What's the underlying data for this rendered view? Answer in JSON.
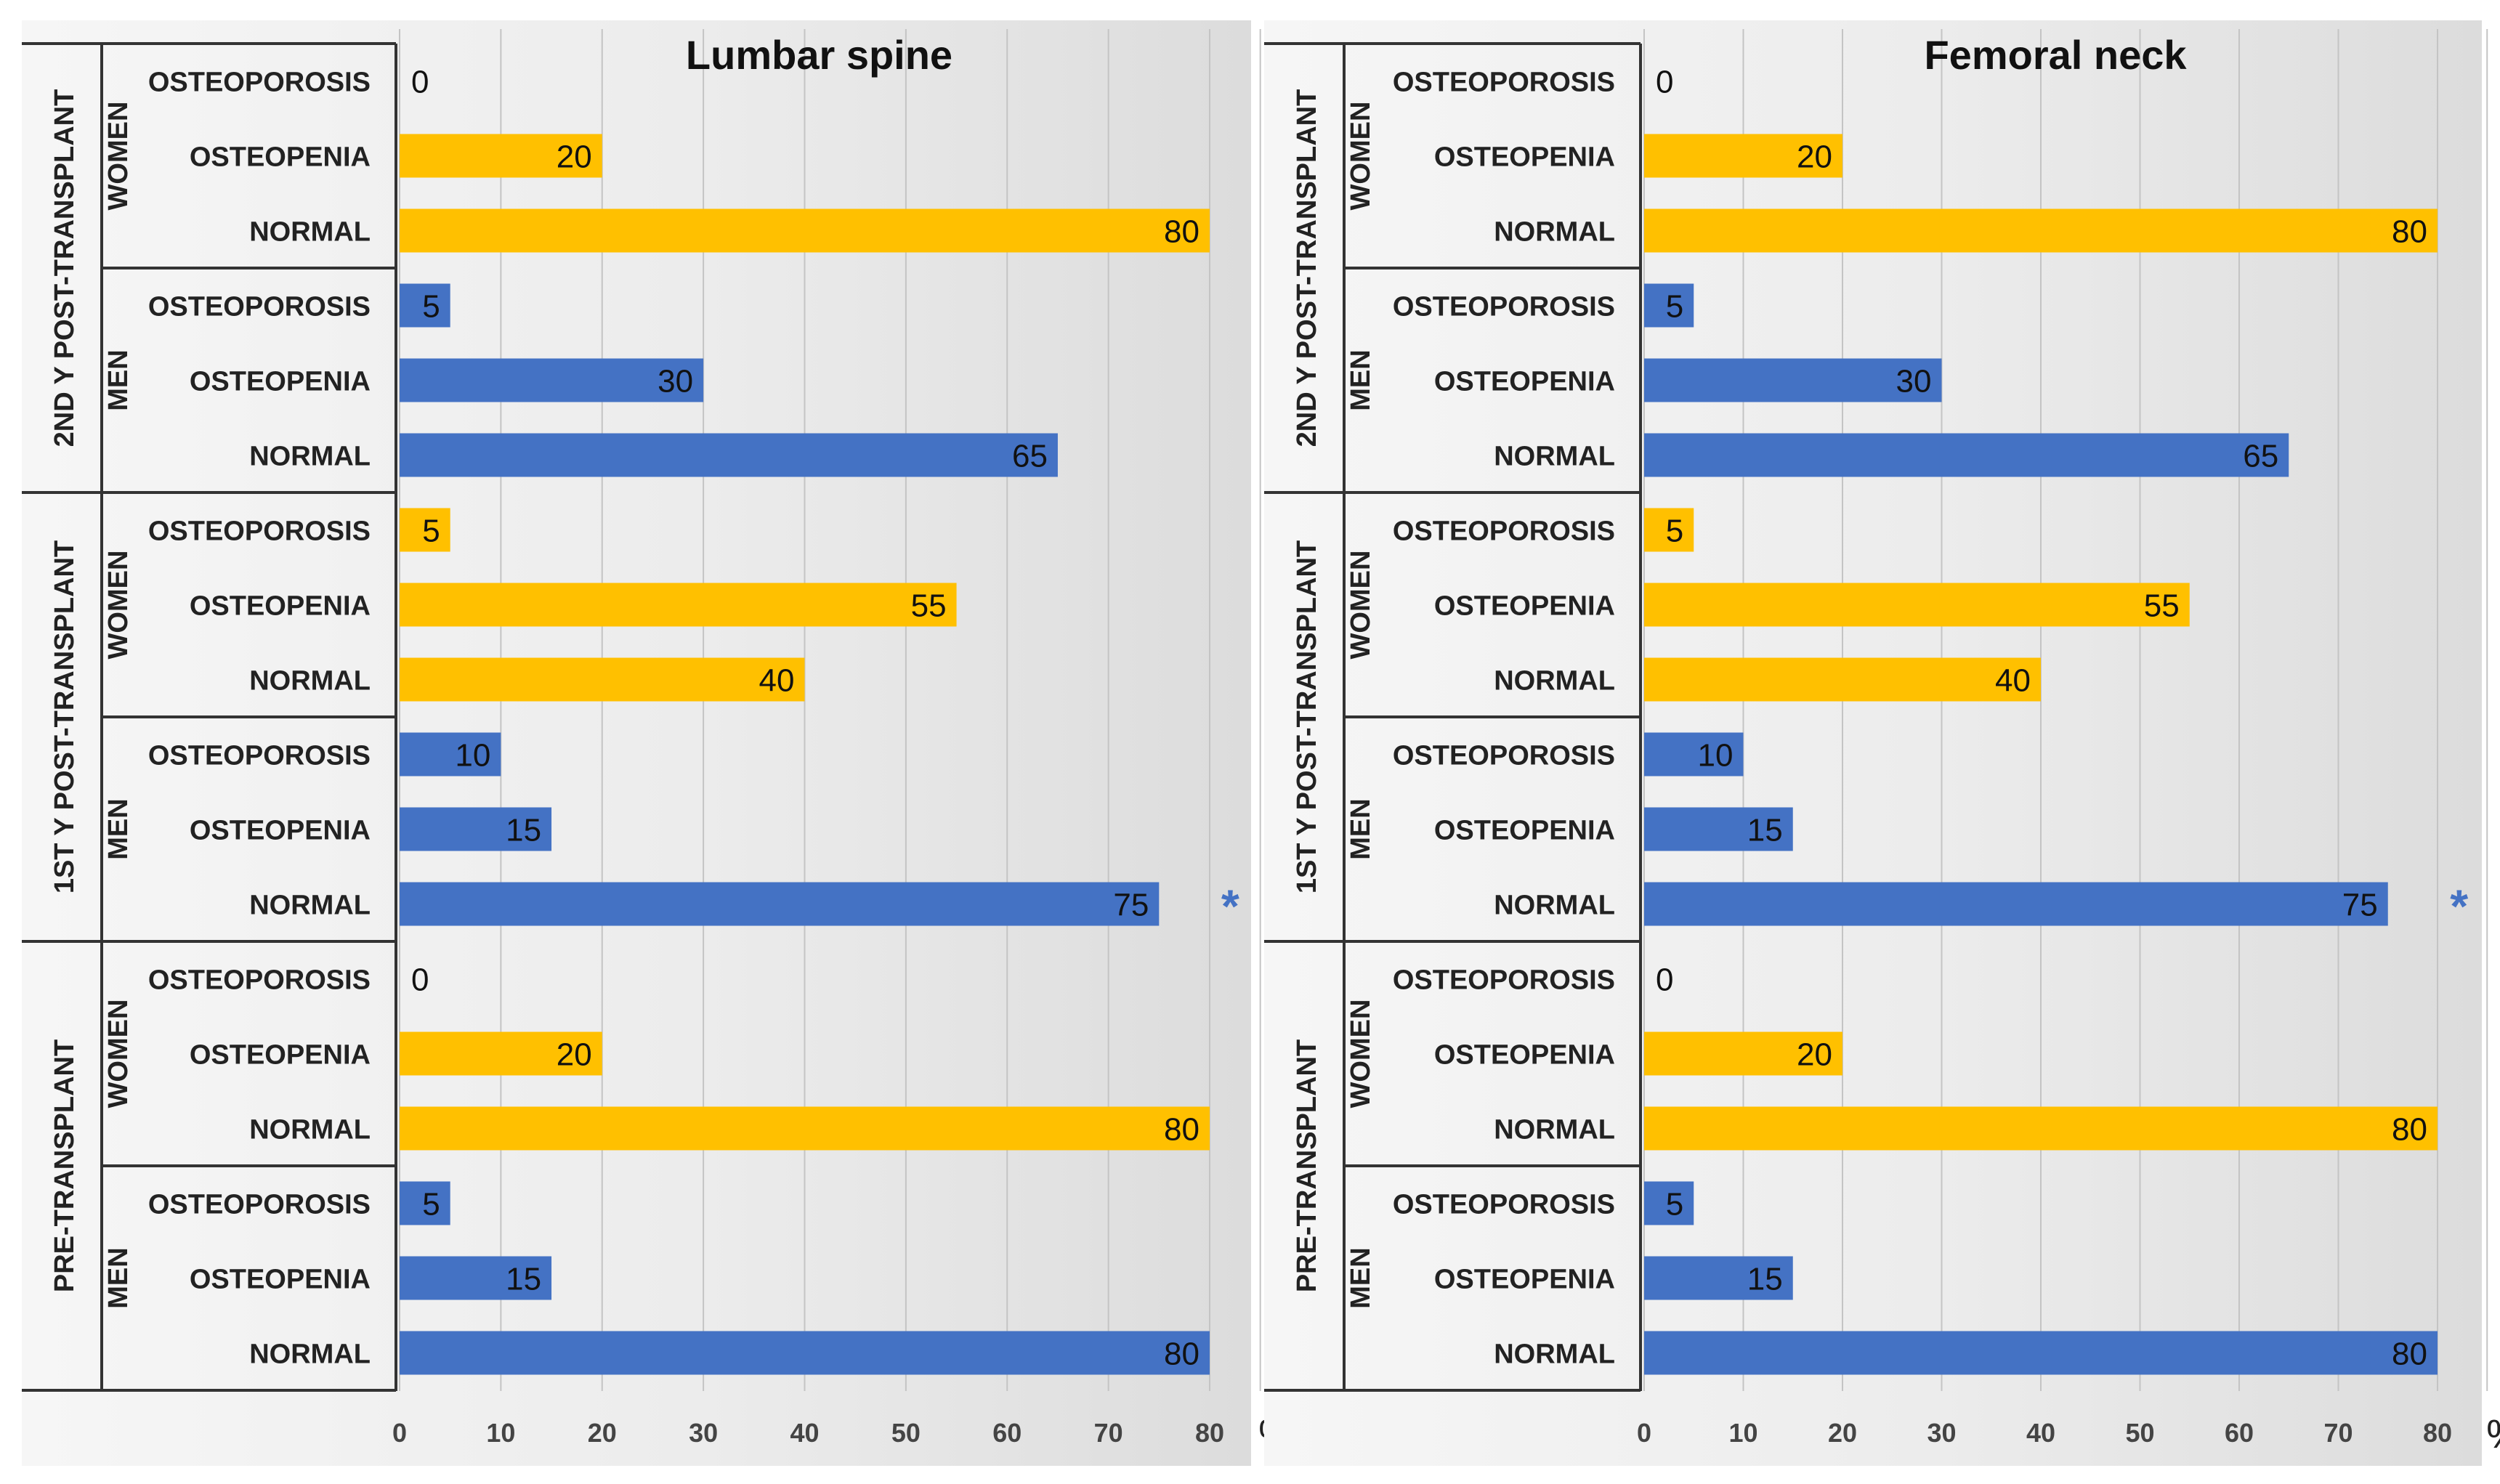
{
  "chart_data": [
    {
      "type": "bar",
      "orientation": "horizontal",
      "title": "Lumbar spine",
      "xlabel": "%",
      "xlim": [
        0,
        80
      ],
      "xticks": [
        0,
        10,
        20,
        30,
        40,
        50,
        60,
        70,
        80
      ],
      "grid": true,
      "colors": {
        "women": "#FFC000",
        "men": "#4472C4"
      },
      "groups": [
        {
          "label": "2ND Y POST-TRANSPLANT",
          "subgroups": [
            {
              "label": "WOMEN",
              "sex": "women",
              "bars": [
                {
                  "category": "OSTEOPOROSIS",
                  "value": 0
                },
                {
                  "category": "OSTEOPENIA",
                  "value": 20
                },
                {
                  "category": "NORMAL",
                  "value": 80
                }
              ]
            },
            {
              "label": "MEN",
              "sex": "men",
              "bars": [
                {
                  "category": "OSTEOPOROSIS",
                  "value": 5
                },
                {
                  "category": "OSTEOPENIA",
                  "value": 30
                },
                {
                  "category": "NORMAL",
                  "value": 65
                }
              ]
            }
          ]
        },
        {
          "label": "1ST Y POST-TRANSPLANT",
          "subgroups": [
            {
              "label": "WOMEN",
              "sex": "women",
              "bars": [
                {
                  "category": "OSTEOPOROSIS",
                  "value": 5
                },
                {
                  "category": "OSTEOPENIA",
                  "value": 55
                },
                {
                  "category": "NORMAL",
                  "value": 40
                }
              ]
            },
            {
              "label": "MEN",
              "sex": "men",
              "bars": [
                {
                  "category": "OSTEOPOROSIS",
                  "value": 10
                },
                {
                  "category": "OSTEOPENIA",
                  "value": 15
                },
                {
                  "category": "NORMAL",
                  "value": 75,
                  "marker": "*"
                }
              ]
            }
          ]
        },
        {
          "label": "PRE-TRANSPLANT",
          "subgroups": [
            {
              "label": "WOMEN",
              "sex": "women",
              "bars": [
                {
                  "category": "OSTEOPOROSIS",
                  "value": 0
                },
                {
                  "category": "OSTEOPENIA",
                  "value": 20
                },
                {
                  "category": "NORMAL",
                  "value": 80
                }
              ]
            },
            {
              "label": "MEN",
              "sex": "men",
              "bars": [
                {
                  "category": "OSTEOPOROSIS",
                  "value": 5
                },
                {
                  "category": "OSTEOPENIA",
                  "value": 15
                },
                {
                  "category": "NORMAL",
                  "value": 80
                }
              ]
            }
          ]
        }
      ]
    },
    {
      "type": "bar",
      "orientation": "horizontal",
      "title": "Femoral neck",
      "xlabel": "%",
      "xlim": [
        0,
        80
      ],
      "xticks": [
        0,
        10,
        20,
        30,
        40,
        50,
        60,
        70,
        80
      ],
      "grid": true,
      "colors": {
        "women": "#FFC000",
        "men": "#4472C4"
      },
      "groups": [
        {
          "label": "2ND Y POST-TRANSPLANT",
          "subgroups": [
            {
              "label": "WOMEN",
              "sex": "women",
              "bars": [
                {
                  "category": "OSTEOPOROSIS",
                  "value": 0
                },
                {
                  "category": "OSTEOPENIA",
                  "value": 20
                },
                {
                  "category": "NORMAL",
                  "value": 80
                }
              ]
            },
            {
              "label": "MEN",
              "sex": "men",
              "bars": [
                {
                  "category": "OSTEOPOROSIS",
                  "value": 5
                },
                {
                  "category": "OSTEOPENIA",
                  "value": 30
                },
                {
                  "category": "NORMAL",
                  "value": 65
                }
              ]
            }
          ]
        },
        {
          "label": "1ST Y POST-TRANSPLANT",
          "subgroups": [
            {
              "label": "WOMEN",
              "sex": "women",
              "bars": [
                {
                  "category": "OSTEOPOROSIS",
                  "value": 5
                },
                {
                  "category": "OSTEOPENIA",
                  "value": 55
                },
                {
                  "category": "NORMAL",
                  "value": 40
                }
              ]
            },
            {
              "label": "MEN",
              "sex": "men",
              "bars": [
                {
                  "category": "OSTEOPOROSIS",
                  "value": 10
                },
                {
                  "category": "OSTEOPENIA",
                  "value": 15
                },
                {
                  "category": "NORMAL",
                  "value": 75,
                  "marker": "*"
                }
              ]
            }
          ]
        },
        {
          "label": "PRE-TRANSPLANT",
          "subgroups": [
            {
              "label": "WOMEN",
              "sex": "women",
              "bars": [
                {
                  "category": "OSTEOPOROSIS",
                  "value": 0
                },
                {
                  "category": "OSTEOPENIA",
                  "value": 20
                },
                {
                  "category": "NORMAL",
                  "value": 80
                }
              ]
            },
            {
              "label": "MEN",
              "sex": "men",
              "bars": [
                {
                  "category": "OSTEOPOROSIS",
                  "value": 5
                },
                {
                  "category": "OSTEOPENIA",
                  "value": 15
                },
                {
                  "category": "NORMAL",
                  "value": 80
                }
              ]
            }
          ]
        }
      ]
    }
  ]
}
